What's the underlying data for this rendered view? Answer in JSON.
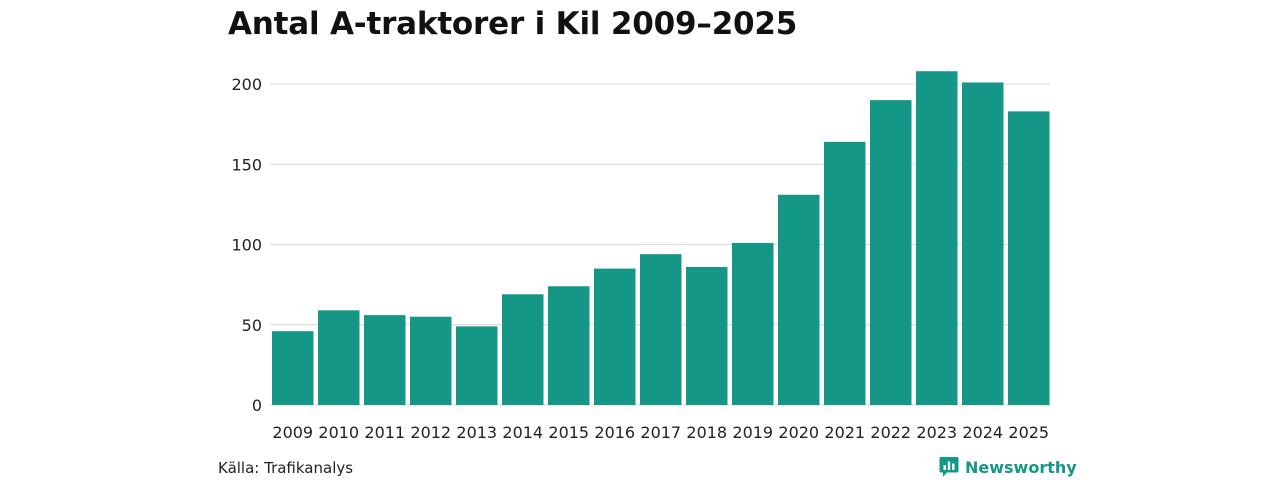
{
  "colors": {
    "bar": "#159788",
    "grid": "#dedede",
    "text": "#222222",
    "brand": "#159788"
  },
  "footer": {
    "source": "Källa: Trafikanalys",
    "brand_name": "Newsworthy",
    "brand_icon": "newsworthy-logo-icon"
  },
  "chart_data": {
    "type": "bar",
    "title": "Antal A-traktorer i Kil 2009–2025",
    "xlabel": "",
    "ylabel": "",
    "categories": [
      "2009",
      "2010",
      "2011",
      "2012",
      "2013",
      "2014",
      "2015",
      "2016",
      "2017",
      "2018",
      "2019",
      "2020",
      "2021",
      "2022",
      "2023",
      "2024",
      "2025"
    ],
    "values": [
      46,
      59,
      56,
      55,
      49,
      69,
      74,
      85,
      94,
      86,
      101,
      131,
      164,
      190,
      208,
      201,
      183
    ],
    "ylim": [
      0,
      215
    ],
    "yticks": [
      0,
      50,
      100,
      150,
      200
    ],
    "grid": true,
    "legend": "none"
  }
}
